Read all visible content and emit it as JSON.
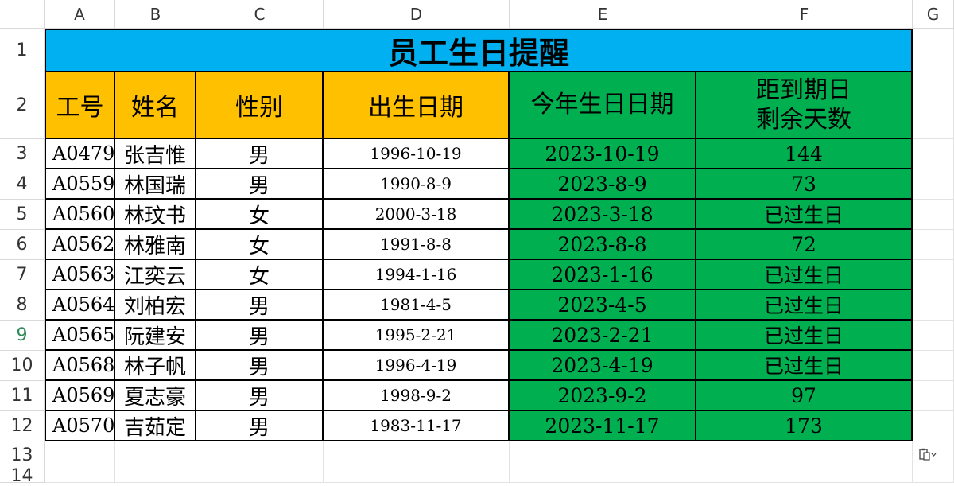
{
  "spreadsheet": {
    "columns": [
      "A",
      "B",
      "C",
      "D",
      "E",
      "F",
      "G"
    ],
    "rows": [
      "1",
      "2",
      "3",
      "4",
      "5",
      "6",
      "7",
      "8",
      "9",
      "10",
      "11",
      "12",
      "13",
      "14"
    ],
    "selected_row": "9",
    "title": "员工生日提醒",
    "headers": {
      "id": "工号",
      "name": "姓名",
      "gender": "性别",
      "birth": "出生日期",
      "this_year": "今年生日日期",
      "remaining": "距到期日\n剩余天数"
    },
    "records": [
      {
        "id": "A0479",
        "name": "张吉惟",
        "gender": "男",
        "birth": "1996-10-19",
        "this_year": "2023-10-19",
        "remaining": "144"
      },
      {
        "id": "A0559",
        "name": "林国瑞",
        "gender": "男",
        "birth": "1990-8-9",
        "this_year": "2023-8-9",
        "remaining": "73"
      },
      {
        "id": "A0560",
        "name": "林玟书",
        "gender": "女",
        "birth": "2000-3-18",
        "this_year": "2023-3-18",
        "remaining": "已过生日"
      },
      {
        "id": "A0562",
        "name": "林雅南",
        "gender": "女",
        "birth": "1991-8-8",
        "this_year": "2023-8-8",
        "remaining": "72"
      },
      {
        "id": "A0563",
        "name": "江奕云",
        "gender": "女",
        "birth": "1994-1-16",
        "this_year": "2023-1-16",
        "remaining": "已过生日"
      },
      {
        "id": "A0564",
        "name": "刘柏宏",
        "gender": "男",
        "birth": "1981-4-5",
        "this_year": "2023-4-5",
        "remaining": "已过生日"
      },
      {
        "id": "A0565",
        "name": "阮建安",
        "gender": "男",
        "birth": "1995-2-21",
        "this_year": "2023-2-21",
        "remaining": "已过生日"
      },
      {
        "id": "A0568",
        "name": "林子帆",
        "gender": "男",
        "birth": "1996-4-19",
        "this_year": "2023-4-19",
        "remaining": "已过生日"
      },
      {
        "id": "A0569",
        "name": "夏志豪",
        "gender": "男",
        "birth": "1998-9-2",
        "this_year": "2023-9-2",
        "remaining": "97"
      },
      {
        "id": "A0570",
        "name": "吉茹定",
        "gender": "男",
        "birth": "1983-11-17",
        "this_year": "2023-11-17",
        "remaining": "173"
      }
    ],
    "colors": {
      "title_bg": "#00b0f0",
      "header_yellow": "#ffc000",
      "header_green": "#00b050"
    },
    "paste_options_icon": "clipboard-icon"
  }
}
